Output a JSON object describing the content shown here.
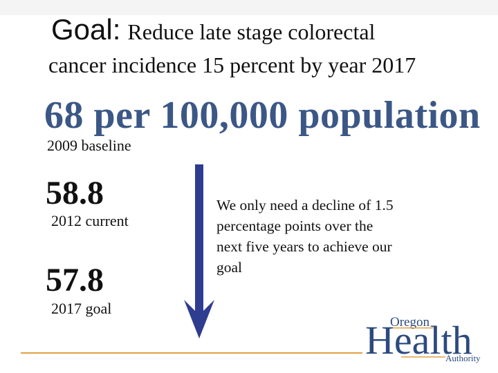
{
  "slide": {
    "goal_label": "Goal:",
    "goal_text_line1": "Reduce late stage colorectal",
    "goal_text_line2": "cancer incidence 15 percent by year 2017",
    "baseline_value": "68 per 100,000 population",
    "baseline_label": "2009 baseline",
    "current_value": "58.8",
    "current_label": "2012 current",
    "goal_value": "57.8",
    "goal_year_label": "2017 goal",
    "note": "We only need a decline of 1.5 percentage points over the next five years to achieve our goal"
  },
  "logo": {
    "top": "Oregon",
    "main": "Health",
    "bottom": "Authority"
  },
  "colors": {
    "accent_blue": "#3b5786",
    "arrow_blue": "#2e3d8f",
    "rule_orange": "#e0a040",
    "logo_blue": "#2c4a7e",
    "logo_orange": "#e0a040"
  },
  "icons": {
    "arrow": "down-arrow-icon"
  }
}
